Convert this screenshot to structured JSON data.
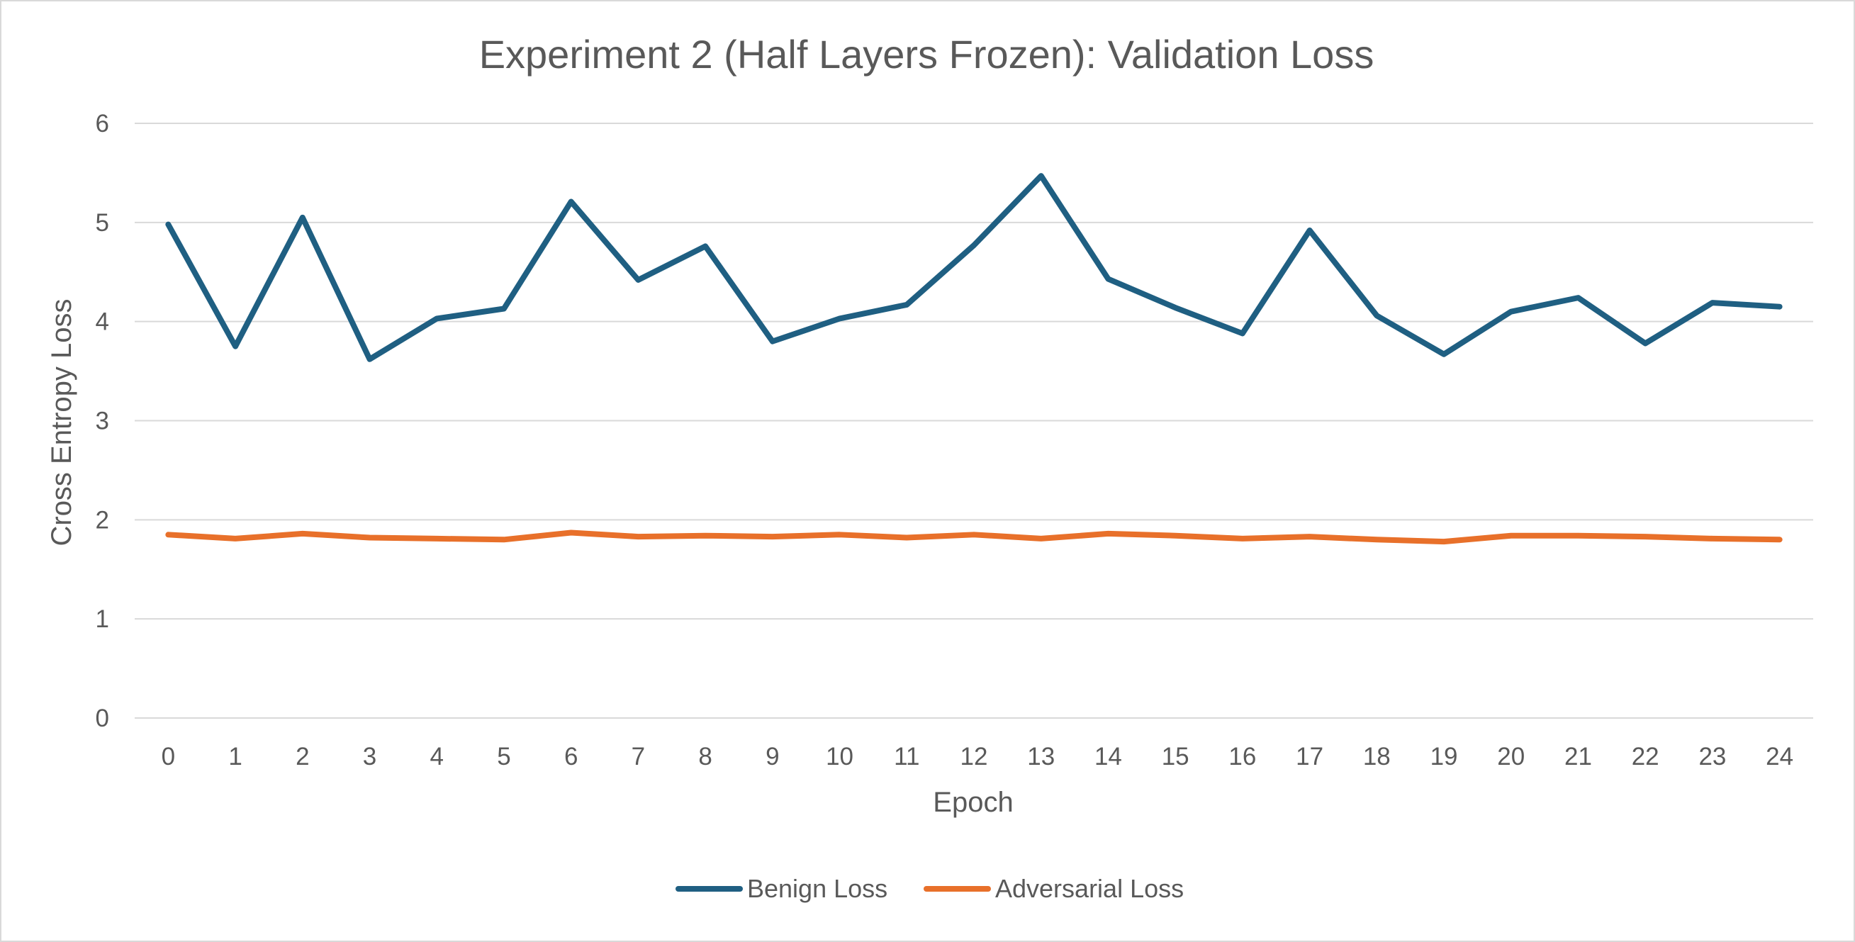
{
  "chart_data": {
    "type": "line",
    "title": "Experiment 2 (Half Layers Frozen): Validation Loss",
    "xlabel": "Epoch",
    "ylabel": "Cross Entropy Loss",
    "x": [
      "0",
      "1",
      "2",
      "3",
      "4",
      "5",
      "6",
      "7",
      "8",
      "9",
      "10",
      "11",
      "12",
      "13",
      "14",
      "15",
      "16",
      "17",
      "18",
      "19",
      "20",
      "21",
      "22",
      "23",
      "24"
    ],
    "ylim": [
      0,
      6
    ],
    "yticks": [
      "0",
      "1",
      "2",
      "3",
      "4",
      "5",
      "6"
    ],
    "grid": "horizontal",
    "legend_position": "bottom",
    "series": [
      {
        "name": "Benign Loss",
        "color": "#1f5f82",
        "values": [
          4.98,
          3.75,
          5.05,
          3.62,
          4.03,
          4.13,
          5.21,
          4.42,
          4.76,
          3.8,
          4.03,
          4.17,
          4.77,
          5.47,
          4.43,
          4.14,
          3.88,
          4.92,
          4.06,
          3.67,
          4.1,
          4.24,
          3.78,
          4.19,
          4.15
        ]
      },
      {
        "name": "Adversarial Loss",
        "color": "#e8702a",
        "values": [
          1.85,
          1.81,
          1.86,
          1.82,
          1.81,
          1.8,
          1.87,
          1.83,
          1.84,
          1.83,
          1.85,
          1.82,
          1.85,
          1.81,
          1.86,
          1.84,
          1.81,
          1.83,
          1.8,
          1.78,
          1.84,
          1.84,
          1.83,
          1.81,
          1.8
        ]
      }
    ]
  }
}
